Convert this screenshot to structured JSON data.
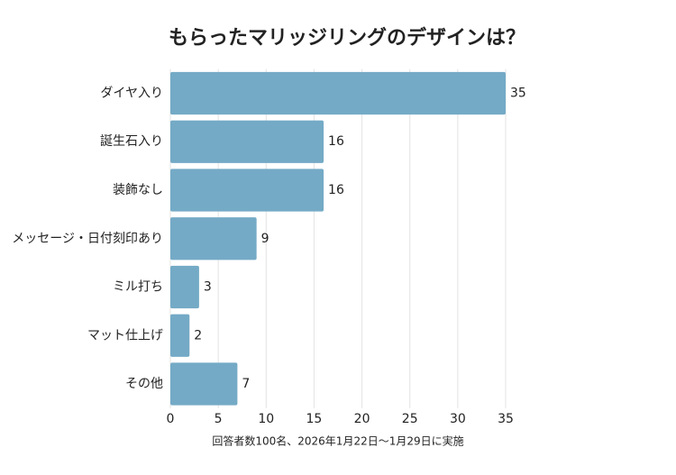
{
  "chart_data": {
    "type": "bar",
    "orientation": "horizontal",
    "title": "もらったマリッジリングのデザインは？",
    "x_label": "回答者数100名、2026年1月22日〜1月29日に実施",
    "categories": [
      "ダイヤ入り",
      "誕生石入り",
      "装飾なし",
      "メッセージ・日付刻印あり",
      "ミル打ち",
      "マット仕上げ",
      "その他"
    ],
    "values": [
      35,
      16,
      16,
      9,
      3,
      2,
      7
    ],
    "color": "#74aac6",
    "xlim": [
      0,
      35
    ],
    "xticks": [
      0,
      5,
      10,
      15,
      20,
      25,
      30,
      35
    ],
    "grid": true
  }
}
